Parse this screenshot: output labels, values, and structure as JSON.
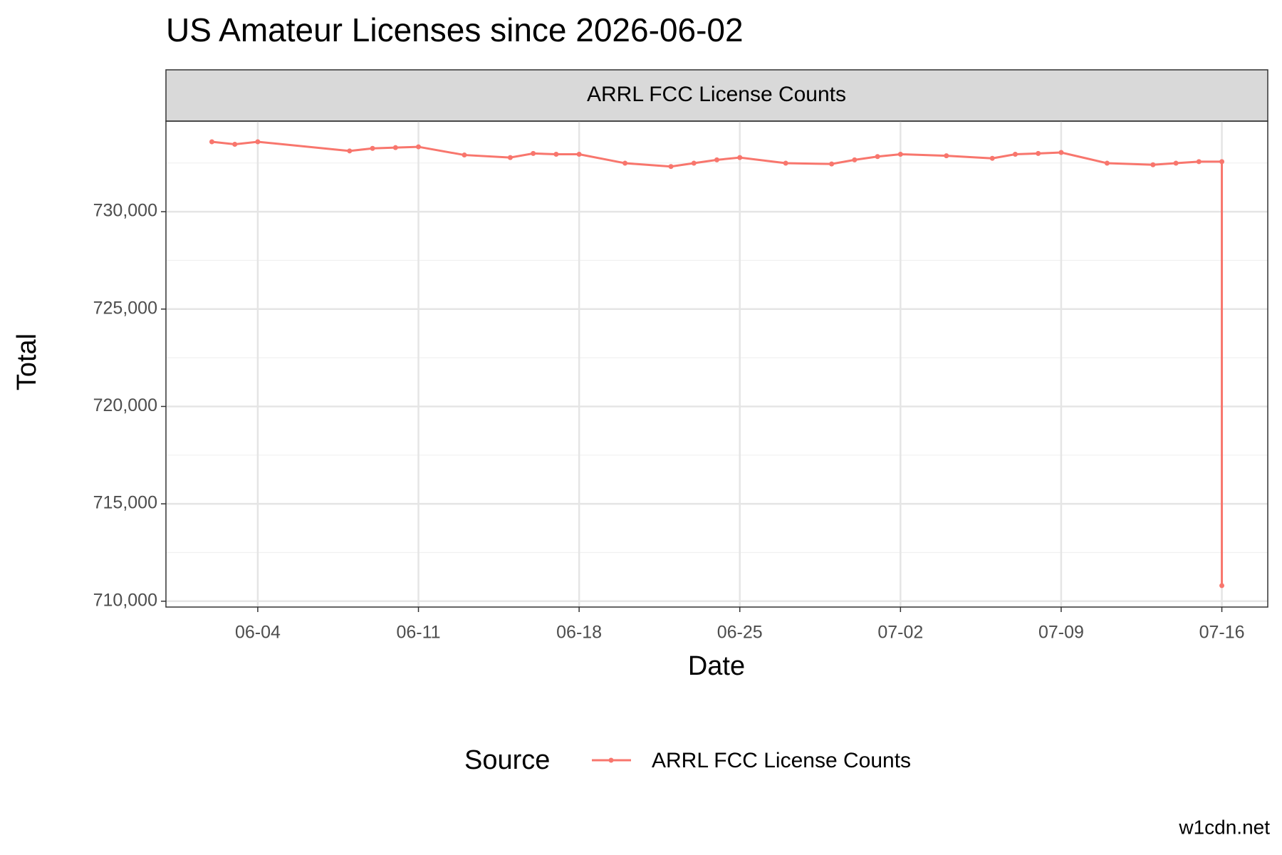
{
  "chart_data": {
    "type": "line",
    "title": "US Amateur Licenses since 2026-06-02",
    "facet_label": "ARRL FCC License Counts",
    "x_label": "Date",
    "y_label": "Total",
    "legend_title": "Source",
    "caption": "w1cdn.net",
    "x": [
      "06-02",
      "06-03",
      "06-04",
      "06-08",
      "06-09",
      "06-10",
      "06-11",
      "06-13",
      "06-15",
      "06-16",
      "06-17",
      "06-18",
      "06-20",
      "06-22",
      "06-23",
      "06-24",
      "06-25",
      "06-27",
      "06-29",
      "06-30",
      "07-01",
      "07-02",
      "07-04",
      "07-06",
      "07-07",
      "07-08",
      "07-09",
      "07-11",
      "07-13",
      "07-14",
      "07-15",
      "07-16",
      "07-16"
    ],
    "series": [
      {
        "name": "ARRL FCC License Counts",
        "color": "#f8766d",
        "values": [
          733590,
          733460,
          733590,
          733120,
          733250,
          733290,
          733330,
          732910,
          732780,
          732990,
          732950,
          732950,
          732490,
          732320,
          732490,
          732660,
          732780,
          732490,
          732450,
          732660,
          732830,
          732950,
          732870,
          732740,
          732950,
          732990,
          733040,
          732490,
          732410,
          732490,
          732570,
          732570,
          710800
        ]
      }
    ],
    "xlim": [
      "05-31",
      "07-18"
    ],
    "xticks": [
      "06-04",
      "06-11",
      "06-18",
      "06-25",
      "07-02",
      "07-09",
      "07-16"
    ],
    "ylim": [
      709700,
      734650
    ],
    "yticks": [
      {
        "value": 710000,
        "label": "710,000"
      },
      {
        "value": 715000,
        "label": "715,000"
      },
      {
        "value": 720000,
        "label": "720,000"
      },
      {
        "value": 725000,
        "label": "725,000"
      },
      {
        "value": 730000,
        "label": "730,000"
      }
    ],
    "y_minor_grid": [
      712500,
      717500,
      722500,
      727500,
      732500
    ],
    "grid": true,
    "legend": "bottom"
  }
}
